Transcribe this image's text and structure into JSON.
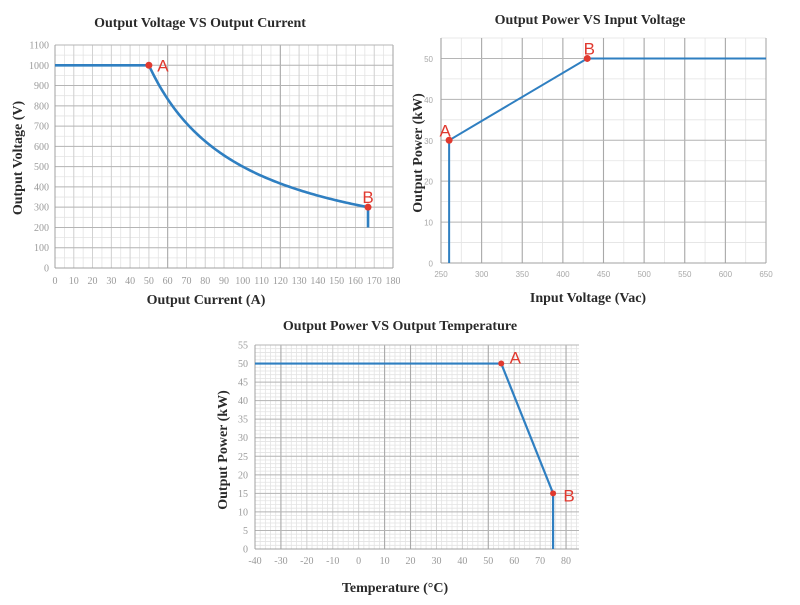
{
  "colors": {
    "line": "#2f7fc1",
    "point": "#e0392f",
    "grid_major": "#b9b9b9",
    "grid_minor": "#e3e3e3",
    "tick_text": "#9a9a9a"
  },
  "chart_data": [
    {
      "id": "voltage_vs_current",
      "type": "line",
      "title": "Output Voltage VS Output Current",
      "xlabel": "Output Current (A)",
      "ylabel": "Output Voltage (V)",
      "xlim": [
        0,
        180
      ],
      "ylim": [
        0,
        1100
      ],
      "xticks": [
        0,
        10,
        20,
        30,
        40,
        50,
        60,
        70,
        80,
        90,
        100,
        110,
        120,
        130,
        140,
        150,
        160,
        170,
        180
      ],
      "yticks": [
        0,
        100,
        200,
        300,
        400,
        500,
        600,
        700,
        800,
        900,
        1000,
        1100
      ],
      "grid": true,
      "series": [
        {
          "name": "Output Voltage",
          "description": "Constant 1000 V up to 50 A, then constant-power (50 kW) hyperbola V = 50000/I down to 300 V at ~167 A, then vertical drop to 200 V",
          "points": [
            [
              0,
              1000
            ],
            [
              50,
              1000
            ],
            [
              60,
              833
            ],
            [
              70,
              714
            ],
            [
              80,
              625
            ],
            [
              90,
              556
            ],
            [
              100,
              500
            ],
            [
              110,
              455
            ],
            [
              120,
              417
            ],
            [
              130,
              385
            ],
            [
              140,
              357
            ],
            [
              150,
              333
            ],
            [
              160,
              313
            ],
            [
              166.7,
              300
            ],
            [
              166.7,
              200
            ]
          ]
        }
      ],
      "annotations": [
        {
          "label": "A",
          "x": 50,
          "y": 1000
        },
        {
          "label": "B",
          "x": 166.7,
          "y": 300
        }
      ]
    },
    {
      "id": "power_vs_input_voltage",
      "type": "line",
      "title": "Output Power VS Input Voltage",
      "xlabel": "Input Voltage (Vac)",
      "ylabel": "Output Power (kW)",
      "xlim": [
        250,
        650
      ],
      "ylim": [
        0,
        55
      ],
      "xticks": [
        250,
        300,
        350,
        400,
        450,
        500,
        550,
        600,
        650
      ],
      "yticks": [
        0,
        10,
        20,
        30,
        40,
        50
      ],
      "grid": true,
      "series": [
        {
          "name": "Output Power",
          "points": [
            [
              260,
              0
            ],
            [
              260,
              30
            ],
            [
              430,
              50
            ],
            [
              650,
              50
            ]
          ]
        }
      ],
      "annotations": [
        {
          "label": "A",
          "x": 260,
          "y": 30
        },
        {
          "label": "B",
          "x": 430,
          "y": 50
        }
      ]
    },
    {
      "id": "power_vs_temperature",
      "type": "line",
      "title": "Output Power VS Output Temperature",
      "xlabel": "Temperature (°C)",
      "ylabel": "Output Power (kW)",
      "xlim": [
        -40,
        85
      ],
      "ylim": [
        0,
        55
      ],
      "xticks": [
        -40,
        -30,
        -20,
        -10,
        0,
        10,
        20,
        30,
        40,
        50,
        60,
        70,
        80
      ],
      "yticks": [
        0,
        5,
        10,
        15,
        20,
        25,
        30,
        35,
        40,
        45,
        50,
        55
      ],
      "grid": true,
      "series": [
        {
          "name": "Output Power",
          "points": [
            [
              -40,
              50
            ],
            [
              55,
              50
            ],
            [
              75,
              15
            ],
            [
              75,
              0
            ]
          ]
        }
      ],
      "annotations": [
        {
          "label": "A",
          "x": 55,
          "y": 50
        },
        {
          "label": "B",
          "x": 75,
          "y": 15
        }
      ]
    }
  ]
}
